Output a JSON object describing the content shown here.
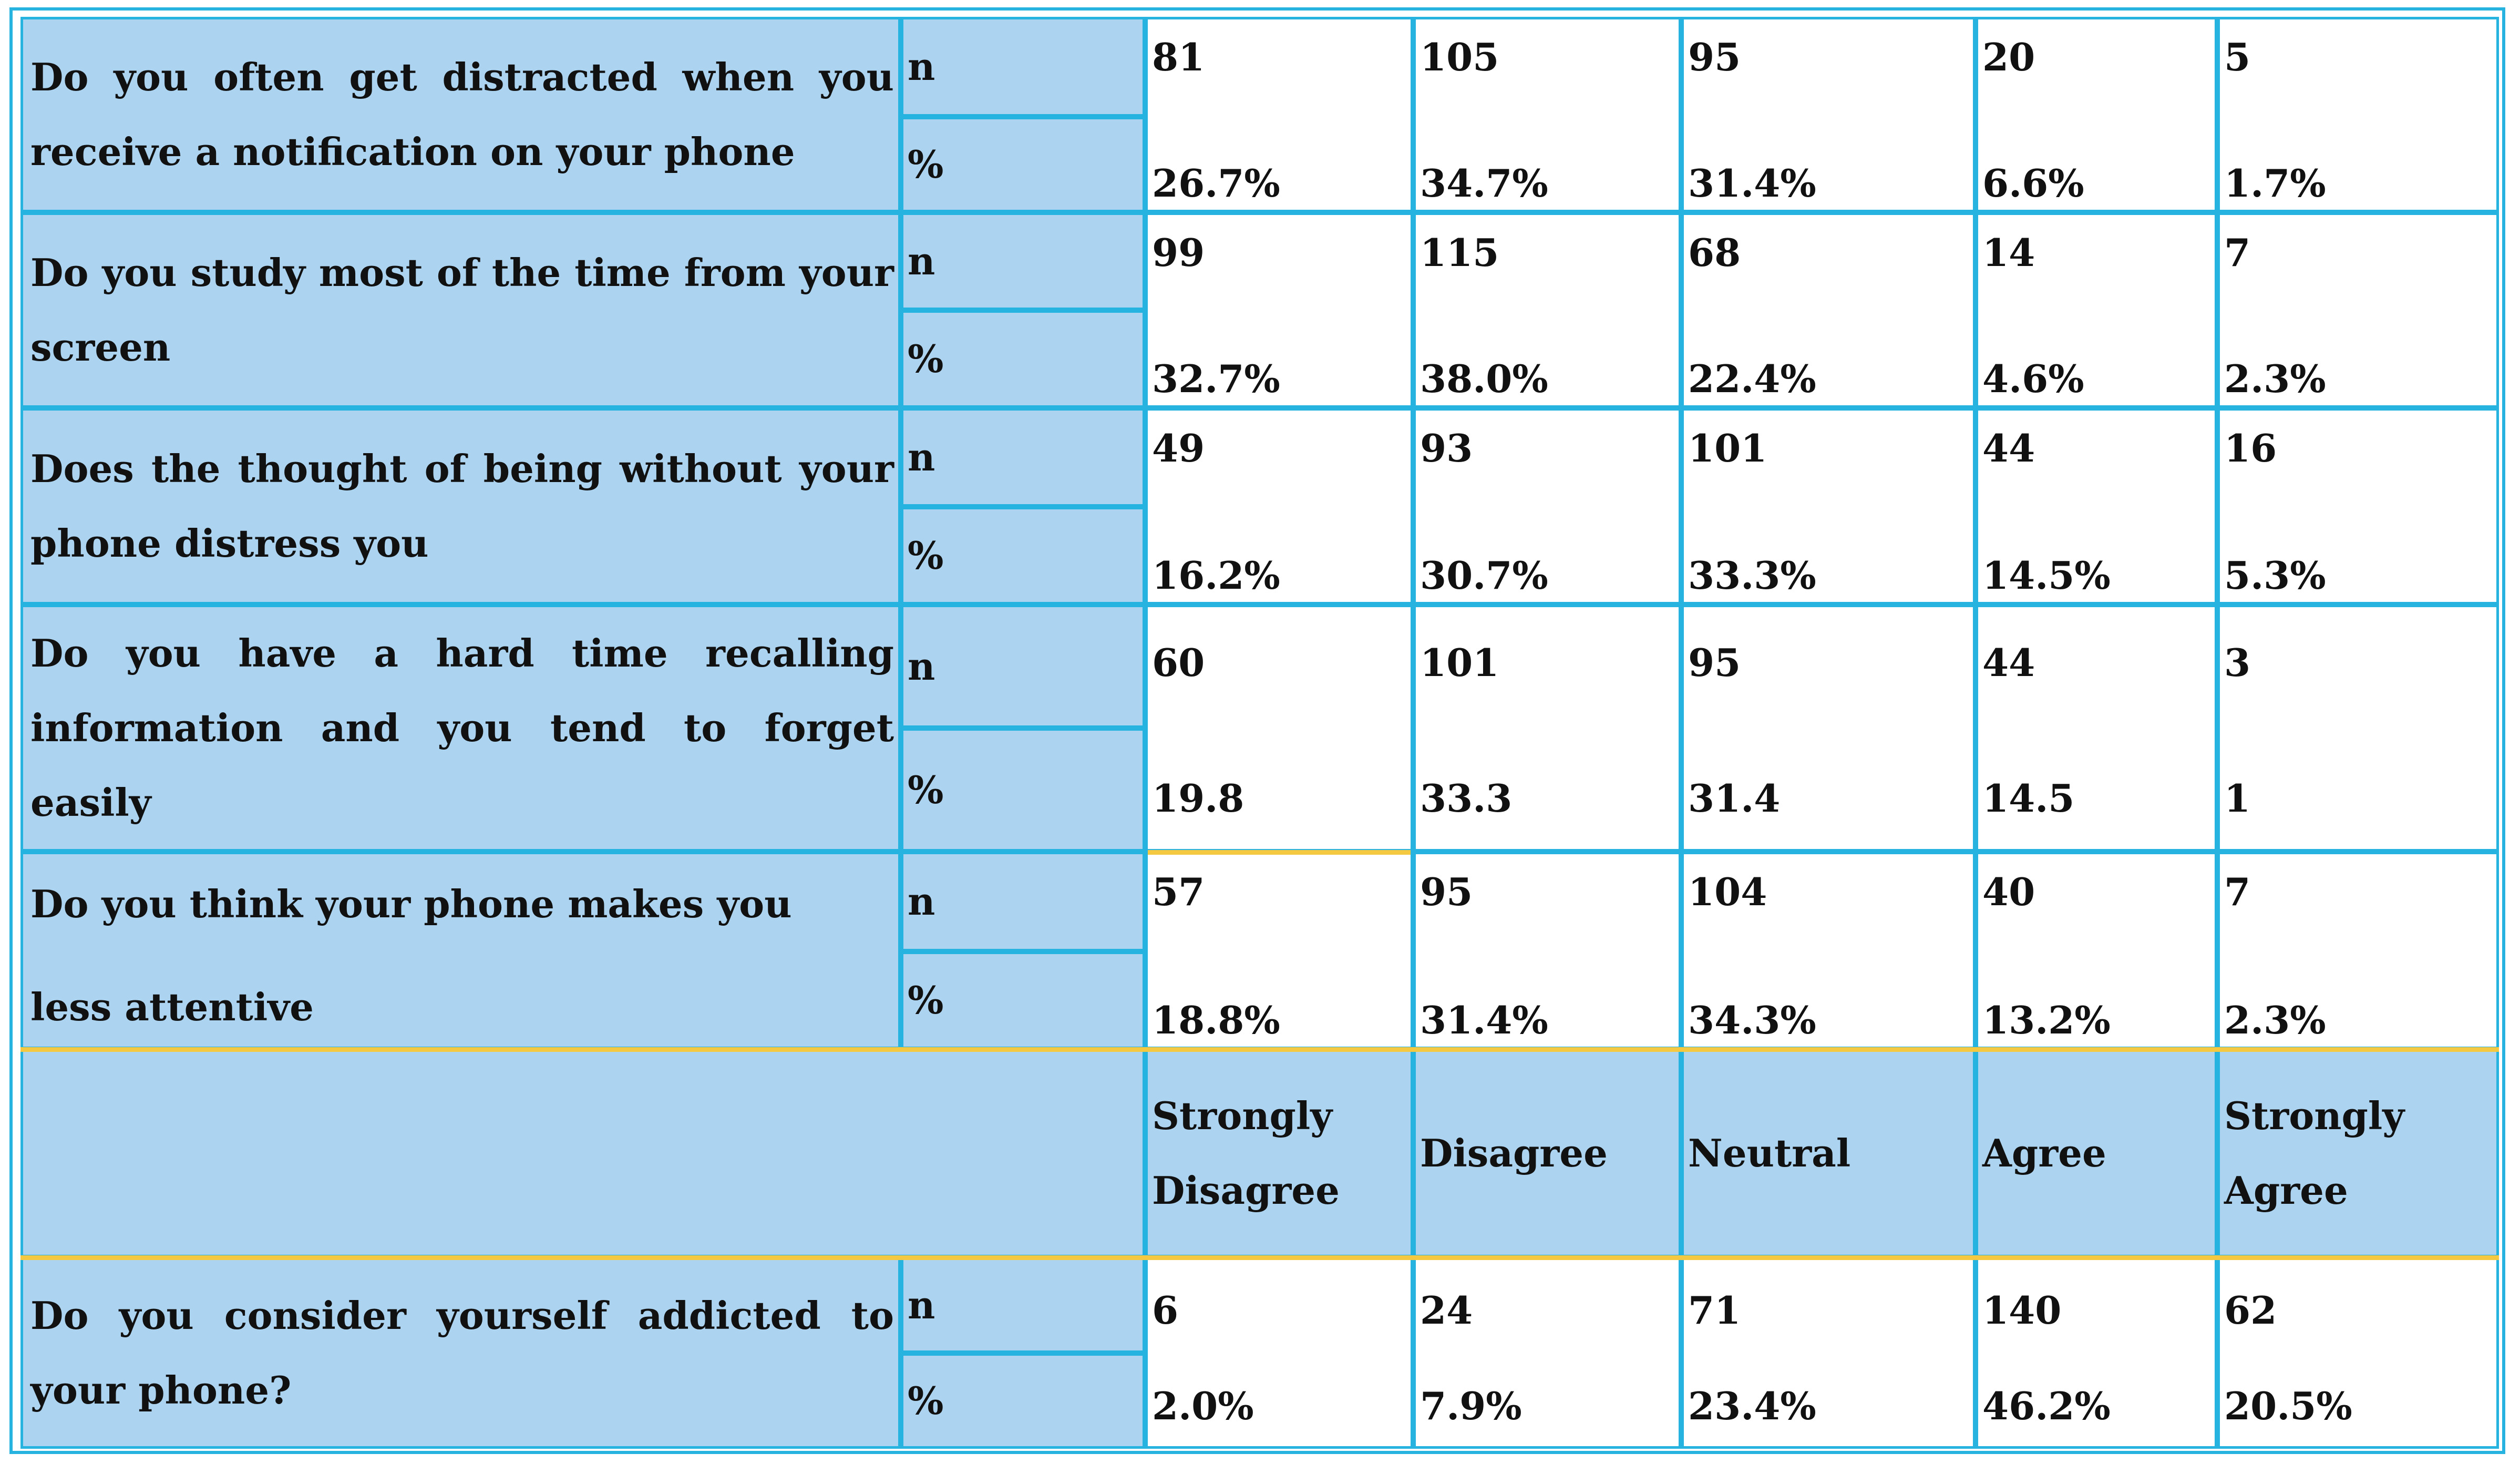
{
  "table": {
    "header": {
      "strongly_disagree": "Strongly Disagree",
      "disagree": "Disagree",
      "neutral": "Neutral",
      "agree": "Agree",
      "strongly_agree": "Strongly Agree"
    },
    "rows": [
      {
        "question": "Do you often get distracted when you receive a notification on your phone",
        "n_label": "n",
        "pct_label": "%",
        "n": [
          "81",
          "105",
          "95",
          "20",
          "5"
        ],
        "pct": [
          "26.7%",
          "34.7%",
          "31.4%",
          "6.6%",
          "1.7%"
        ]
      },
      {
        "question": "Do you study most of the time from your screen",
        "n_label": "n",
        "pct_label": "%",
        "n": [
          "99",
          "115",
          "68",
          "14",
          "7"
        ],
        "pct": [
          "32.7%",
          "38.0%",
          "22.4%",
          "4.6%",
          "2.3%"
        ]
      },
      {
        "question": "Does the thought of being without your phone distress you",
        "n_label": "n",
        "pct_label": "%",
        "n": [
          "49",
          "93",
          "101",
          "44",
          "16"
        ],
        "pct": [
          "16.2%",
          "30.7%",
          "33.3%",
          "14.5%",
          "5.3%"
        ]
      },
      {
        "question": "Do you have a hard time recalling information and you tend to forget easily",
        "n_label": "n",
        "pct_label": "%",
        "n": [
          "60",
          "101",
          "95",
          "44",
          "3"
        ],
        "pct": [
          "19.8",
          "33.3",
          "31.4",
          "14.5",
          "1"
        ]
      },
      {
        "question_line1": "Do you think your phone makes you",
        "question_line2": "less attentive",
        "n_label": "n",
        "pct_label": "%",
        "n": [
          "57",
          "95",
          "104",
          "40",
          "7"
        ],
        "pct": [
          "18.8%",
          "31.4%",
          "34.3%",
          "13.2%",
          "2.3%"
        ]
      },
      {
        "question": "Do you consider yourself addicted to your phone?",
        "n_label": "n",
        "pct_label": "%",
        "n": [
          "6",
          "24",
          "71",
          "140",
          "62"
        ],
        "pct": [
          "2.0%",
          "7.9%",
          "23.4%",
          "46.2%",
          "20.5%"
        ]
      }
    ]
  },
  "colors": {
    "border": "#27b3df",
    "label_fill": "#acd3ef",
    "accent_line": "#f5c842"
  }
}
